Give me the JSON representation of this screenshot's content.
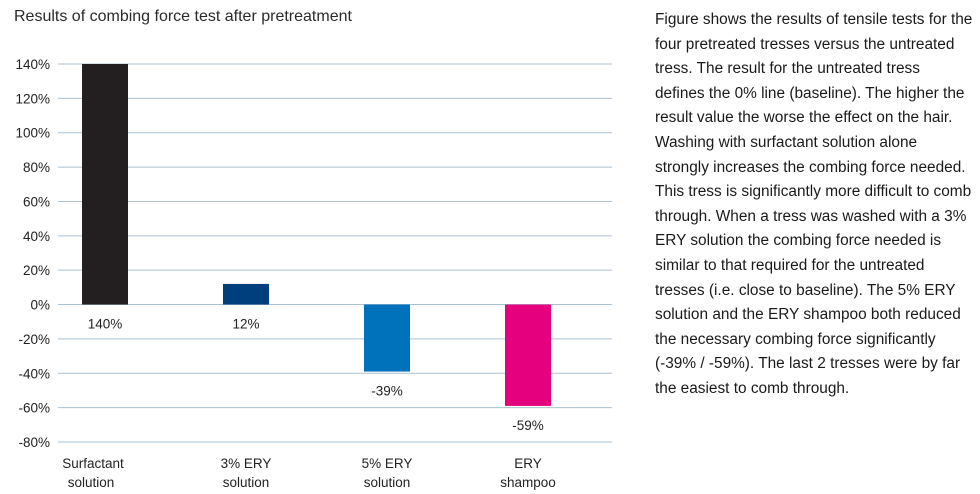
{
  "chart_data": {
    "type": "bar",
    "title": "Results of combing force test after pretreatment",
    "categories": [
      [
        "Surfactant",
        "solution"
      ],
      [
        "3% ERY",
        "solution"
      ],
      [
        "5% ERY",
        "solution"
      ],
      [
        "ERY",
        "shampoo"
      ]
    ],
    "values": [
      140,
      12,
      -39,
      -59
    ],
    "value_labels": [
      "140%",
      "12%",
      "-39%",
      "-59%"
    ],
    "colors": [
      "#231f20",
      "#003f7d",
      "#0072bc",
      "#e5007e"
    ],
    "ylim": [
      -80,
      140
    ],
    "yticks": [
      140,
      120,
      100,
      80,
      60,
      40,
      20,
      0,
      -20,
      -40,
      -60,
      -80
    ],
    "ytick_labels": [
      "140%",
      "120%",
      "100%",
      "80%",
      "60%",
      "40%",
      "20%",
      "0%",
      "-20%",
      "-40%",
      "-60%",
      "-80%"
    ],
    "grid": true,
    "gridline_color": "#a9c1d3"
  },
  "description": "Figure shows the results of tensile tests for the four pretreated tresses versus the untreated tress. The result for the untreated tress defines the 0% line (baseline). The higher the result value the worse the effect on the hair. Washing with surfactant solution alone strongly increases the combing force needed. This tress is significantly more difficult to comb through. When a tress was washed with a 3% ERY solution the combing force needed is similar to that required for the untreated tresses (i.e. close to baseline). The 5% ERY solution and the ERY shampoo both reduced the necessary combing force significantly (-39% / -59%). The last 2 tresses were by far the easiest to comb through."
}
